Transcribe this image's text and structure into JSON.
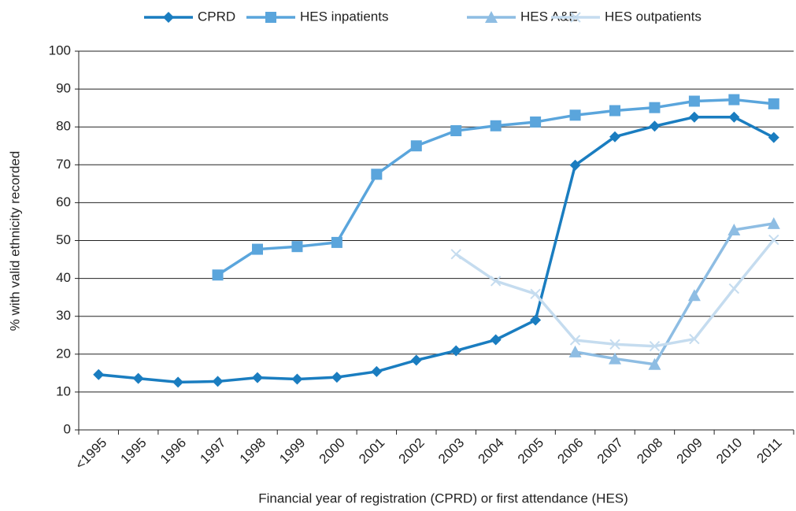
{
  "chart_data": {
    "type": "line",
    "xlabel": "Financial year of registration (CPRD) or first attendance (HES)",
    "ylabel": "% with valid ethnicity recorded",
    "categories": [
      "<1995",
      "1995",
      "1996",
      "1997",
      "1998",
      "1999",
      "2000",
      "2001",
      "2002",
      "2003",
      "2004",
      "2005",
      "2006",
      "2007",
      "2008",
      "2009",
      "2010",
      "2011"
    ],
    "series": [
      {
        "name": "CPRD",
        "color": "#1a7dc0",
        "marker": "diamond",
        "values": [
          14.6,
          13.6,
          12.6,
          12.8,
          13.8,
          13.4,
          13.9,
          15.4,
          18.4,
          20.9,
          23.8,
          29,
          69.9,
          77.4,
          80.2,
          82.6,
          82.6,
          77.2
        ]
      },
      {
        "name": "HES inpatients",
        "color": "#5aa5dc",
        "marker": "square",
        "values": [
          null,
          null,
          null,
          40.9,
          47.7,
          48.4,
          49.5,
          67.5,
          75,
          79,
          80.3,
          81.3,
          83.1,
          84.3,
          85.1,
          86.8,
          87.2,
          86.1
        ]
      },
      {
        "name": "HES A&E",
        "color": "#8ebde3",
        "marker": "triangle",
        "values": [
          null,
          null,
          null,
          null,
          null,
          null,
          null,
          null,
          null,
          null,
          null,
          null,
          20.6,
          18.8,
          17.3,
          35.5,
          52.8,
          54.5
        ]
      },
      {
        "name": "HES outpatients",
        "color": "#c5dcef",
        "marker": "x",
        "values": [
          null,
          null,
          null,
          null,
          null,
          null,
          null,
          null,
          null,
          46.4,
          39.3,
          35.9,
          23.7,
          22.6,
          22.1,
          24,
          37.3,
          50.2
        ]
      }
    ],
    "ylim": [
      0,
      100
    ],
    "yticks": [
      0,
      10,
      20,
      30,
      40,
      50,
      60,
      70,
      80,
      90,
      100
    ],
    "grid": true,
    "legend": "top"
  }
}
